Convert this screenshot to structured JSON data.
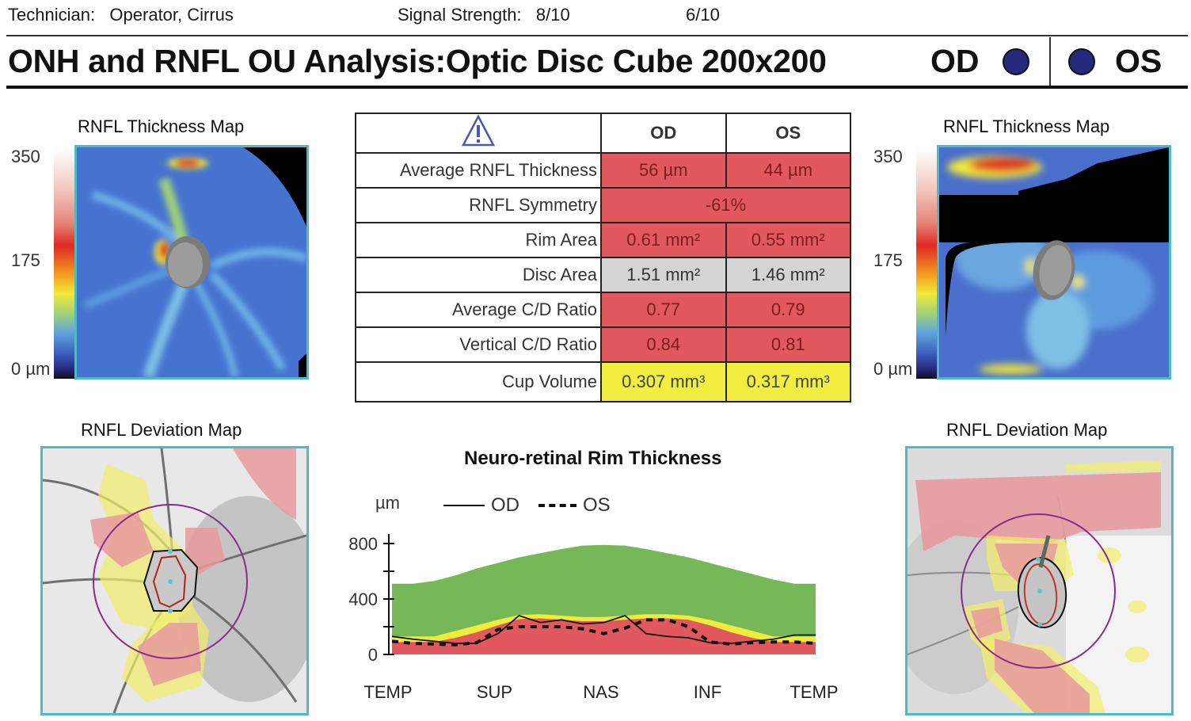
{
  "header": {
    "technician_label": "Technician:",
    "technician_value": "Operator, Cirrus",
    "signal_label": "Signal Strength:",
    "signal_od": "8/10",
    "signal_os": "6/10",
    "title": "ONH and RNFL OU Analysis:Optic Disc Cube 200x200",
    "od_label": "OD",
    "os_label": "OS",
    "eye_dot_color": "#262a7c"
  },
  "thickness_maps": {
    "od": {
      "title": "RNFL Thickness Map"
    },
    "os": {
      "title": "RNFL Thickness Map"
    },
    "colorbar": {
      "max": "350",
      "mid": "175",
      "min": "0 µm"
    }
  },
  "deviation_maps": {
    "od": {
      "title": "RNFL Deviation Map"
    },
    "os": {
      "title": "RNFL Deviation Map"
    }
  },
  "stats_table": {
    "warning_icon": "warning-triangle-icon",
    "columns": [
      "OD",
      "OS"
    ],
    "rows": [
      {
        "label": "Average RNFL Thickness",
        "od": "56 µm",
        "os": "44 µm",
        "status": "red"
      },
      {
        "label": "RNFL Symmetry",
        "merged": "-61%",
        "status": "red"
      },
      {
        "label": "Rim Area",
        "od": "0.61 mm²",
        "os": "0.55 mm²",
        "status": "red"
      },
      {
        "label": "Disc Area",
        "od": "1.51 mm²",
        "os": "1.46 mm²",
        "status": "gray"
      },
      {
        "label": "Average C/D Ratio",
        "od": "0.77",
        "os": "0.79",
        "status": "red"
      },
      {
        "label": "Vertical C/D Ratio",
        "od": "0.84",
        "os": "0.81",
        "status": "red"
      },
      {
        "label": "Cup Volume",
        "od": "0.307 mm³",
        "os": "0.317 mm³",
        "status": "yellow"
      }
    ],
    "status_colors": {
      "red": "#e1585e",
      "gray": "#d4d4d4",
      "yellow": "#f1ee3f"
    }
  },
  "chart_data": {
    "type": "line",
    "title": "Neuro-retinal Rim Thickness",
    "ylabel": "µm",
    "xlabel": "",
    "ylim": [
      0,
      800
    ],
    "y_ticks": [
      0,
      200,
      400,
      600,
      800
    ],
    "y_tick_labels": [
      "0",
      "400",
      "800"
    ],
    "x_tick_labels": [
      "TEMP",
      "SUP",
      "NAS",
      "INF",
      "TEMP"
    ],
    "x": [
      0,
      0.05,
      0.1,
      0.15,
      0.2,
      0.25,
      0.3,
      0.35,
      0.4,
      0.45,
      0.5,
      0.55,
      0.6,
      0.65,
      0.7,
      0.75,
      0.8,
      0.85,
      0.9,
      0.95,
      1.0
    ],
    "bands": [
      {
        "name": "normal",
        "color": "#76b757",
        "upper": [
          510,
          510,
          530,
          570,
          620,
          660,
          700,
          730,
          760,
          785,
          790,
          785,
          760,
          730,
          700,
          660,
          620,
          580,
          540,
          510,
          510
        ]
      },
      {
        "name": "borderline",
        "color": "#f0ec3a",
        "upper": [
          130,
          130,
          130,
          170,
          210,
          250,
          285,
          290,
          280,
          270,
          270,
          280,
          290,
          290,
          280,
          250,
          210,
          170,
          130,
          130,
          130
        ]
      },
      {
        "name": "outside-normal",
        "color": "#e1585e",
        "upper": [
          90,
          90,
          90,
          120,
          160,
          210,
          255,
          260,
          250,
          240,
          240,
          250,
          260,
          260,
          250,
          210,
          160,
          120,
          90,
          90,
          90
        ]
      }
    ],
    "series": [
      {
        "name": "OD",
        "style": "solid",
        "values": [
          130,
          110,
          95,
          80,
          80,
          150,
          280,
          230,
          250,
          220,
          230,
          280,
          150,
          130,
          120,
          85,
          80,
          95,
          110,
          140,
          140
        ]
      },
      {
        "name": "OS",
        "style": "dashed",
        "values": [
          95,
          80,
          75,
          70,
          85,
          180,
          200,
          200,
          200,
          185,
          150,
          190,
          250,
          250,
          200,
          90,
          75,
          85,
          90,
          90,
          80
        ]
      }
    ],
    "legend": {
      "od": "OD",
      "os": "OS",
      "position": "top-left"
    },
    "grid": false
  }
}
